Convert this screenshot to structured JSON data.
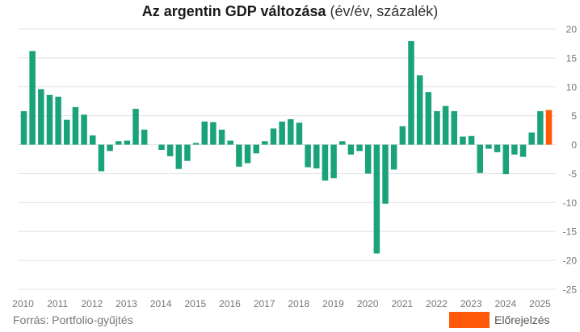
{
  "title_main": "Az argentin GDP változása",
  "title_sub": "(év/év, százalék)",
  "source": "Forrás: Portfolio-gyűjtés",
  "legend": {
    "forecast_label": "Előrejelzés"
  },
  "colors": {
    "actual": "#1aa37a",
    "forecast": "#ff5a0a",
    "grid": "#e3e3e3",
    "axis_text": "#777777"
  },
  "chart_data": {
    "type": "bar",
    "y_axis_position": "right",
    "ylim": [
      -25,
      20
    ],
    "yticks": [
      20,
      15,
      10,
      5,
      0,
      -5,
      -10,
      -15,
      -20,
      -25
    ],
    "grid": true,
    "year_labels": [
      "2010",
      "2011",
      "2012",
      "2013",
      "2014",
      "2015",
      "2016",
      "2017",
      "2018",
      "2019",
      "2020",
      "2021",
      "2022",
      "2023",
      "2024",
      "2025"
    ],
    "series": [
      {
        "name": "",
        "values": [
          5.8,
          16.2,
          9.6,
          8.6,
          8.3,
          4.3,
          6.5,
          5.2,
          1.6,
          -4.6,
          -1.1,
          0.6,
          0.7,
          6.2,
          2.6,
          0,
          -0.9,
          -2.0,
          -4.2,
          -2.8,
          0.3,
          4.0,
          3.9,
          2.6,
          0.7,
          -3.8,
          -3.2,
          -1.5,
          0.6,
          2.8,
          4.0,
          4.4,
          3.8,
          -3.9,
          -4.1,
          -6.2,
          -5.8,
          0.6,
          -1.7,
          -1.1,
          -5.0,
          -18.8,
          -10.2,
          -4.3,
          3.2,
          17.9,
          12.0,
          9.1,
          5.8,
          6.7,
          5.8,
          1.4,
          1.5,
          -4.9,
          -0.7,
          -1.3,
          -5.1,
          -1.7,
          -2.1,
          2.1,
          5.8
        ]
      },
      {
        "name": "Előrejelzés",
        "values": [
          6.0
        ]
      }
    ]
  }
}
